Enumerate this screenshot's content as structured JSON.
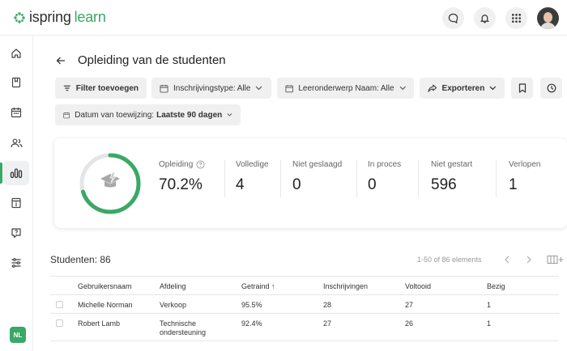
{
  "header": {
    "brand_part1": "ispring",
    "brand_part2": "learn",
    "icons": [
      "chat-icon",
      "bell-icon",
      "apps-grid-icon"
    ],
    "avatar": "user-avatar"
  },
  "sidebar": {
    "items": [
      {
        "icon": "home-icon"
      },
      {
        "icon": "book-icon"
      },
      {
        "icon": "calendar-icon"
      },
      {
        "icon": "users-icon"
      },
      {
        "icon": "reports-icon",
        "active": true
      },
      {
        "icon": "info-icon"
      },
      {
        "icon": "question-icon"
      },
      {
        "icon": "settings-sliders-icon"
      }
    ],
    "user_initials": "NL"
  },
  "page": {
    "title": "Opleiding van de studenten"
  },
  "filters": {
    "add_filter": "Filter toevoegen",
    "enrollment_type_label": "Inschrijvingstype:",
    "enrollment_type_value": "Alle",
    "subject_label": "Leeronderwerp Naam:",
    "subject_value": "Alle",
    "export": "Exporteren",
    "date_label": "Datum van toewijzing:",
    "date_value": "Laatste 90 dagen"
  },
  "summary": {
    "progress_fraction": 0.702,
    "colors": {
      "accent": "#3aa866",
      "track": "#e5e5e5"
    },
    "stats": [
      {
        "label": "Opleiding",
        "value": "70.2%",
        "help": true
      },
      {
        "label": "Volledige",
        "value": "4"
      },
      {
        "label": "Niet geslaagd",
        "value": "0"
      },
      {
        "label": "In proces",
        "value": "0"
      },
      {
        "label": "Niet gestart",
        "value": "596"
      },
      {
        "label": "Verlopen",
        "value": "1"
      }
    ]
  },
  "students": {
    "title": "Studenten: 86",
    "pagination": "1-50 of 86 elements",
    "columns": [
      "Gebruikersnaam",
      "Afdeling",
      "Getraind ↑",
      "Inschrijvingen",
      "Voltooid",
      "Bezig"
    ],
    "rows": [
      {
        "name": "Michelle Norman",
        "department": "Verkoop",
        "trained": "95.5%",
        "enrollments": "28",
        "completed": "27",
        "in_progress": "1"
      },
      {
        "name": "Robert Lamb",
        "department": "Technische\nondersteuning",
        "trained": "92.4%",
        "enrollments": "27",
        "completed": "26",
        "in_progress": "1"
      }
    ]
  }
}
